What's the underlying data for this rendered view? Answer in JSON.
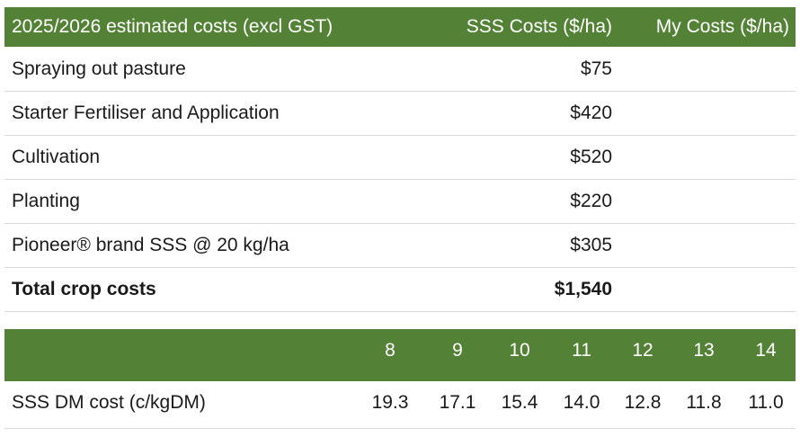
{
  "costs_table": {
    "header": [
      "2025/2026 estimated costs (excl GST)",
      "SSS Costs ($/ha)",
      "My Costs ($/ha)"
    ],
    "rows": [
      [
        "Spraying out pasture",
        "$75"
      ],
      [
        "Starter Fertiliser and Application",
        "$420"
      ],
      [
        "Cultivation",
        "$520"
      ],
      [
        "Planting",
        "$220"
      ],
      [
        "Pioneer® brand SSS @ 20 kg/ha",
        "$305"
      ]
    ],
    "total": [
      "Total crop costs",
      "$1,540"
    ]
  },
  "dm_table": {
    "header": [
      "8",
      "9",
      "10",
      "11",
      "12",
      "13",
      "14"
    ],
    "row_label": "SSS DM cost (c/kgDM)",
    "values": [
      "19.3",
      "17.1",
      "15.4",
      "14.0",
      "12.8",
      "11.8",
      "11.0"
    ]
  }
}
